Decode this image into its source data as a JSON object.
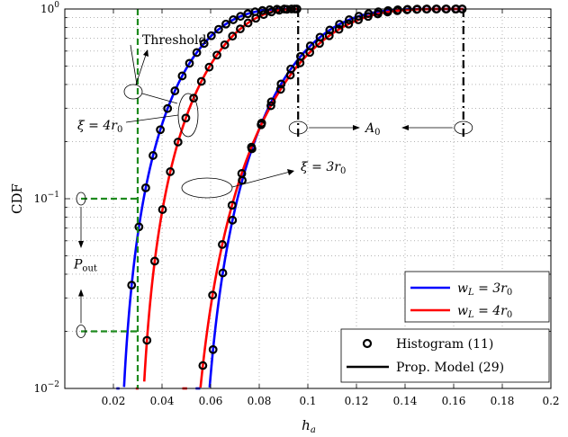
{
  "chart_data": {
    "type": "line",
    "title": "",
    "xlabel": "h_a",
    "ylabel": "CDF",
    "xlim": [
      0,
      0.2
    ],
    "ylim": [
      0.01,
      1
    ],
    "yscale": "log",
    "grid": true,
    "xticks": [
      "0.02",
      "0.04",
      "0.06",
      "0.08",
      "0.1",
      "0.12",
      "0.14",
      "0.16",
      "0.18",
      "0.2"
    ],
    "yticks": [
      {
        "base": "10",
        "exp": "0",
        "value": 1
      },
      {
        "base": "10",
        "exp": "−1",
        "value": 0.1
      },
      {
        "base": "10",
        "exp": "−2",
        "value": 0.01
      }
    ],
    "series": [
      {
        "name": "w_L = 3r_0",
        "color": "#0000ff",
        "x0": 0.021,
        "xmax": 0.096,
        "k": 3.7,
        "a": 1.9,
        "hist": [
          0.0227,
          0.0275,
          0.0305,
          0.0333,
          0.0363,
          0.0393,
          0.0423,
          0.0453,
          0.0483,
          0.0513,
          0.0543,
          0.0573,
          0.0603,
          0.0633,
          0.0663,
          0.0693,
          0.0723,
          0.0753,
          0.0783,
          0.0813,
          0.0843,
          0.0873,
          0.0903,
          0.0933,
          0.0955
        ]
      },
      {
        "name": "w_L = 4r_0",
        "color": "#ff0000",
        "x0": 0.029,
        "xmax": 0.096,
        "k": 2.7,
        "a": 1.9,
        "hist": [
          0.0297,
          0.031,
          0.0338,
          0.037,
          0.0402,
          0.0434,
          0.0466,
          0.0498,
          0.053,
          0.0562,
          0.0594,
          0.0626,
          0.0658,
          0.069,
          0.0722,
          0.0754,
          0.0786,
          0.0818,
          0.085,
          0.0882,
          0.0914,
          0.0946
        ]
      },
      {
        "name": "w_L = 3r_0",
        "color": "#0000ff",
        "x0": 0.0535,
        "xmax": 0.164,
        "k": 6.0,
        "a": 2.2,
        "hist": [
          0.0548,
          0.057,
          0.061,
          0.065,
          0.069,
          0.073,
          0.077,
          0.081,
          0.085,
          0.089,
          0.093,
          0.097,
          0.101,
          0.105,
          0.109,
          0.113,
          0.117,
          0.121,
          0.125,
          0.129,
          0.133,
          0.137,
          0.141,
          0.145,
          0.149,
          0.153,
          0.157,
          0.161,
          0.1635
        ]
      },
      {
        "name": "w_L = 4r_0",
        "color": "#ff0000",
        "x0": 0.048,
        "xmax": 0.164,
        "k": 5.0,
        "a": 2.3,
        "hist": [
          0.05,
          0.0528,
          0.0568,
          0.0608,
          0.0648,
          0.0688,
          0.0728,
          0.0768,
          0.0808,
          0.0848,
          0.0888,
          0.0928,
          0.0968,
          0.1008,
          0.1048,
          0.1088,
          0.1128,
          0.1168,
          0.1208,
          0.1248,
          0.1288,
          0.1328,
          0.1368,
          0.1408,
          0.1448,
          0.1488,
          0.1528,
          0.1568,
          0.1608,
          0.1635
        ]
      }
    ],
    "threshold_x": 0.03,
    "pout_levels": [
      0.1,
      0.02
    ],
    "a0_x": [
      0.096,
      0.164
    ],
    "annotations": {
      "threshold": "Threshold",
      "xi_top_lhs": "ξ",
      "xi_top_rhs": " = 4r",
      "xi_top_sub": "0",
      "xi_bot_lhs": "ξ",
      "xi_bot_rhs": " = 3r",
      "xi_bot_sub": "0",
      "a0": "A",
      "a0_sub": "0",
      "pout": "P",
      "pout_sub": "out"
    },
    "legend_top": [
      {
        "lhs": "w",
        "sub1": "L",
        "rhs": " = 3r",
        "sub2": "0",
        "color": "#0000ff"
      },
      {
        "lhs": "w",
        "sub1": "L",
        "rhs": " = 4r",
        "sub2": "0",
        "color": "#ff0000"
      }
    ],
    "legend_bottom": [
      {
        "label": "Histogram (11)",
        "marker": "circle"
      },
      {
        "label": "Prop. Model (29)",
        "marker": "line"
      }
    ],
    "xlabel_main": "h",
    "xlabel_sub": "a"
  }
}
